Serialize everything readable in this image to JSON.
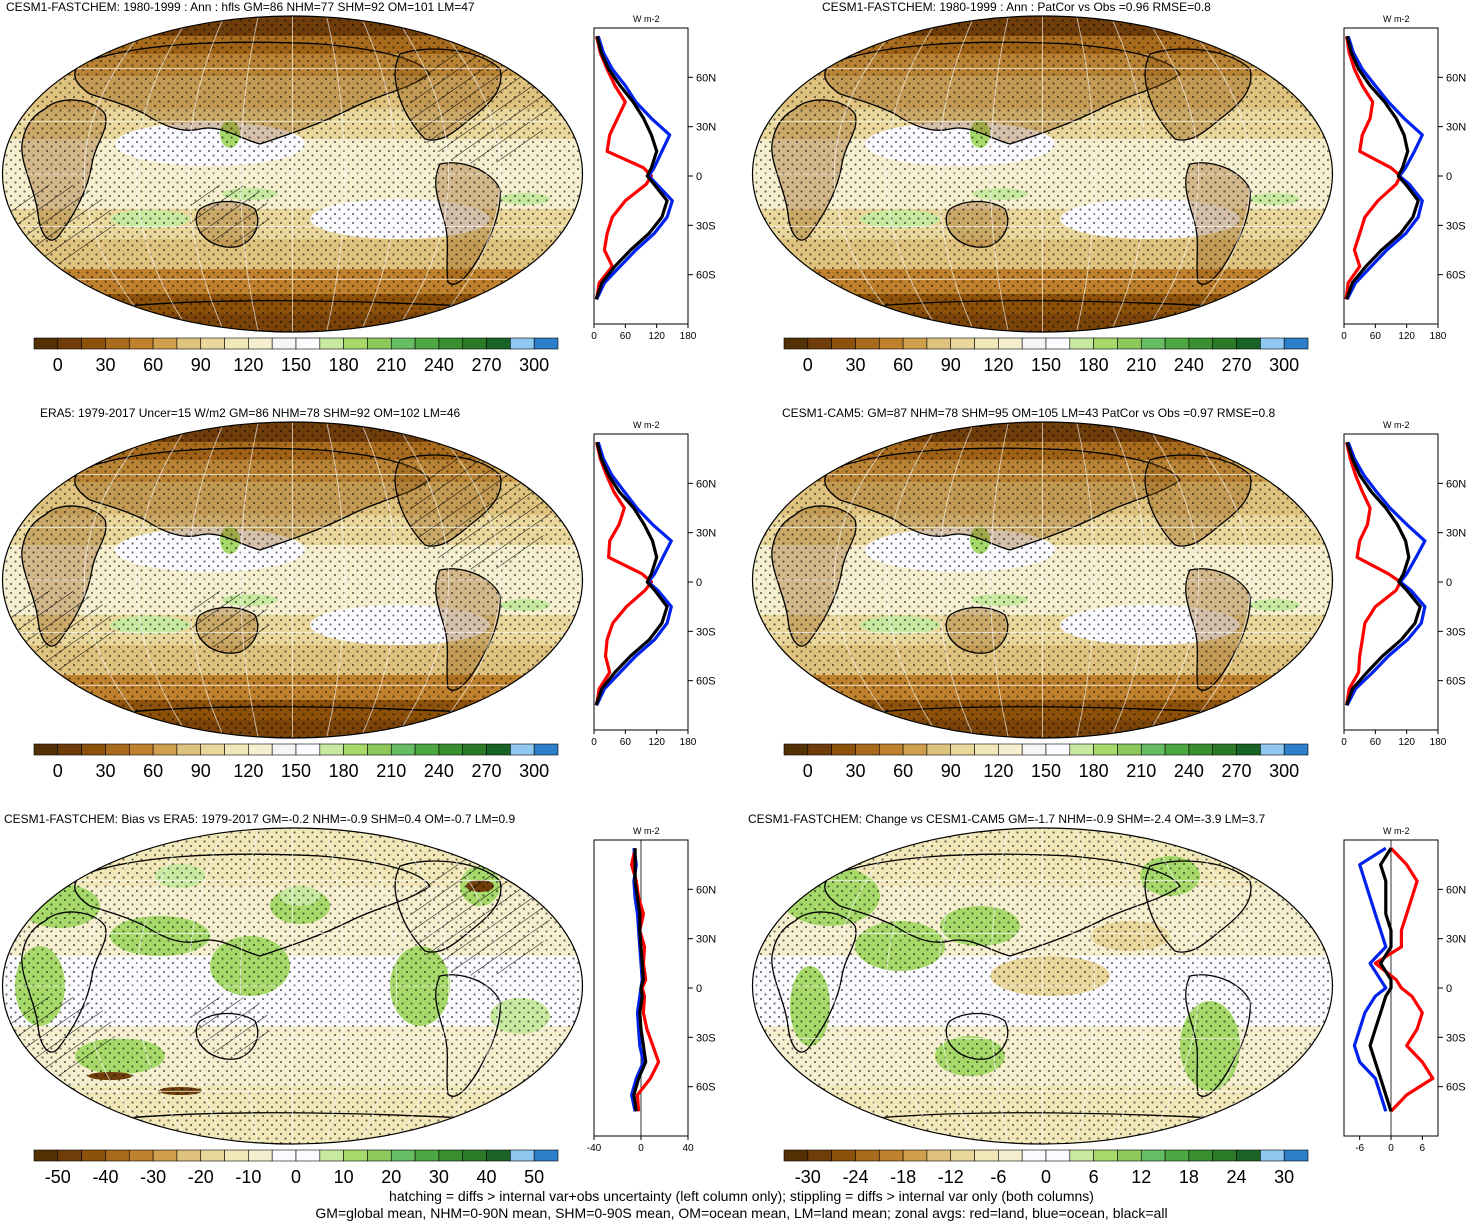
{
  "panels": [
    {
      "title": "CESM1-FASTCHEM: 1980-1999 : Ann : hfls GM=86 NHM=77 SHM=92 OM=101 LM=47",
      "kind": "abs",
      "hatch": true,
      "unit": "W m-2",
      "colorbar_labels": [
        "0",
        "30",
        "60",
        "90",
        "120",
        "150",
        "180",
        "210",
        "240",
        "270",
        "300"
      ],
      "zonal_xticks": [
        "0",
        "60",
        "120",
        "180"
      ],
      "zonal_xlim": [
        0,
        180
      ],
      "lat_labels": [
        "60N",
        "30N",
        "0",
        "30S",
        "60S"
      ],
      "zonal_avgs": {
        "lat": [
          85,
          75,
          65,
          55,
          45,
          35,
          25,
          15,
          5,
          0,
          -5,
          -15,
          -25,
          -35,
          -45,
          -55,
          -65,
          -75
        ],
        "red": [
          5,
          12,
          25,
          40,
          60,
          45,
          30,
          25,
          95,
          110,
          100,
          60,
          35,
          25,
          20,
          35,
          10,
          5
        ],
        "blue": [
          8,
          18,
          35,
          60,
          80,
          110,
          145,
          130,
          115,
          105,
          120,
          150,
          140,
          115,
          80,
          50,
          20,
          5
        ],
        "black": [
          6,
          14,
          28,
          50,
          75,
          95,
          110,
          120,
          110,
          102,
          115,
          140,
          130,
          105,
          70,
          40,
          15,
          4
        ]
      }
    },
    {
      "title": "CESM1-FASTCHEM: 1980-1999 : Ann : PatCor vs Obs =0.96 RMSE=0.8",
      "kind": "abs",
      "hatch": false,
      "unit": "W m-2",
      "colorbar_labels": [
        "0",
        "30",
        "60",
        "90",
        "120",
        "150",
        "180",
        "210",
        "240",
        "270",
        "300"
      ],
      "zonal_xticks": [
        "0",
        "60",
        "120",
        "180"
      ],
      "zonal_xlim": [
        0,
        180
      ],
      "lat_labels": [
        "60N",
        "30N",
        "0",
        "30S",
        "60S"
      ],
      "zonal_avgs": {
        "lat": [
          85,
          75,
          65,
          55,
          45,
          35,
          25,
          15,
          5,
          0,
          -5,
          -15,
          -25,
          -35,
          -45,
          -55,
          -65,
          -75
        ],
        "red": [
          5,
          10,
          20,
          35,
          55,
          50,
          35,
          30,
          90,
          108,
          100,
          65,
          40,
          30,
          20,
          30,
          8,
          4
        ],
        "blue": [
          8,
          18,
          35,
          60,
          85,
          115,
          150,
          135,
          118,
          106,
          125,
          150,
          142,
          118,
          82,
          52,
          22,
          6
        ],
        "black": [
          6,
          14,
          28,
          50,
          78,
          100,
          115,
          122,
          112,
          104,
          118,
          142,
          132,
          108,
          72,
          42,
          16,
          5
        ]
      }
    },
    {
      "title": "ERA5: 1979-2017 Uncer=15 W/m2 GM=86 NHM=78 SHM=92 OM=102 LM=46",
      "kind": "abs",
      "hatch": true,
      "unit": "W m-2",
      "colorbar_labels": [
        "0",
        "30",
        "60",
        "90",
        "120",
        "150",
        "180",
        "210",
        "240",
        "270",
        "300"
      ],
      "zonal_xticks": [
        "0",
        "60",
        "120",
        "180"
      ],
      "zonal_xlim": [
        0,
        180
      ],
      "lat_labels": [
        "60N",
        "30N",
        "0",
        "30S",
        "60S"
      ],
      "zonal_avgs": {
        "lat": [
          85,
          75,
          65,
          55,
          45,
          35,
          25,
          15,
          5,
          0,
          -5,
          -15,
          -25,
          -35,
          -45,
          -55,
          -65,
          -75
        ],
        "red": [
          5,
          12,
          24,
          38,
          58,
          48,
          30,
          28,
          92,
          110,
          98,
          62,
          36,
          25,
          22,
          30,
          10,
          5
        ],
        "blue": [
          8,
          18,
          34,
          58,
          82,
          112,
          148,
          132,
          116,
          104,
          122,
          148,
          140,
          116,
          80,
          50,
          20,
          5
        ],
        "black": [
          6,
          14,
          28,
          48,
          76,
          96,
          112,
          120,
          110,
          102,
          116,
          140,
          130,
          106,
          70,
          40,
          15,
          4
        ]
      }
    },
    {
      "title": "CESM1-CAM5: GM=87 NHM=78 SHM=95 OM=105 LM=43 PatCor vs Obs =0.97 RMSE=0.8",
      "kind": "abs",
      "hatch": false,
      "unit": "W m-2",
      "colorbar_labels": [
        "0",
        "30",
        "60",
        "90",
        "120",
        "150",
        "180",
        "210",
        "240",
        "270",
        "300"
      ],
      "zonal_xticks": [
        "0",
        "60",
        "120",
        "180"
      ],
      "zonal_xlim": [
        0,
        180
      ],
      "lat_labels": [
        "60N",
        "30N",
        "0",
        "30S",
        "60S"
      ],
      "zonal_avgs": {
        "lat": [
          85,
          75,
          65,
          55,
          45,
          35,
          25,
          15,
          5,
          0,
          -5,
          -15,
          -25,
          -35,
          -45,
          -55,
          -65,
          -75
        ],
        "red": [
          5,
          12,
          22,
          35,
          50,
          45,
          30,
          25,
          85,
          108,
          100,
          60,
          40,
          35,
          30,
          28,
          10,
          5
        ],
        "blue": [
          8,
          20,
          38,
          62,
          88,
          120,
          155,
          138,
          120,
          108,
          128,
          155,
          148,
          122,
          85,
          55,
          22,
          6
        ],
        "black": [
          6,
          16,
          30,
          52,
          80,
          102,
          118,
          124,
          114,
          105,
          120,
          146,
          136,
          110,
          74,
          44,
          16,
          5
        ]
      }
    },
    {
      "title": "CESM1-FASTCHEM: Bias vs ERA5: 1979-2017 GM=-0.2 NHM=-0.9 SHM=0.4 OM=-0.7 LM=0.9",
      "kind": "diff",
      "hatch": true,
      "unit": "W m-2",
      "colorbar_labels": [
        "-50",
        "-40",
        "-30",
        "-20",
        "-10",
        "0",
        "10",
        "20",
        "30",
        "40",
        "50"
      ],
      "zonal_xticks": [
        "-40",
        "0",
        "40"
      ],
      "zonal_xlim": [
        -40,
        40
      ],
      "lat_labels": [
        "60N",
        "30N",
        "0",
        "30S",
        "60S"
      ],
      "zonal_avgs": {
        "lat": [
          85,
          75,
          65,
          55,
          45,
          35,
          25,
          15,
          5,
          0,
          -5,
          -15,
          -25,
          -35,
          -45,
          -55,
          -65,
          -75
        ],
        "red": [
          -5,
          -8,
          -4,
          -2,
          2,
          -1,
          3,
          2,
          4,
          1,
          3,
          2,
          5,
          10,
          15,
          8,
          -3,
          -2
        ],
        "blue": [
          -6,
          -4,
          -6,
          -5,
          -3,
          -2,
          -1,
          0,
          1,
          0,
          -1,
          -3,
          -2,
          -1,
          2,
          -4,
          -8,
          -5
        ],
        "black": [
          -5,
          -5,
          -5,
          -3,
          -1,
          -1,
          0,
          1,
          2,
          0,
          1,
          -1,
          0,
          2,
          4,
          -2,
          -6,
          -4
        ]
      }
    },
    {
      "title": "CESM1-FASTCHEM: Change vs CESM1-CAM5 GM=-1.7 NHM=-0.9 SHM=-2.4 OM=-3.9 LM=3.7",
      "kind": "diff2",
      "hatch": false,
      "unit": "W m-2",
      "colorbar_labels": [
        "-30",
        "-24",
        "-18",
        "-12",
        "-6",
        "0",
        "6",
        "12",
        "18",
        "24",
        "30"
      ],
      "zonal_xticks": [
        "-6",
        "0",
        "6"
      ],
      "zonal_xlim": [
        -9,
        9
      ],
      "lat_labels": [
        "60N",
        "30N",
        "0",
        "30S",
        "60S"
      ],
      "zonal_avgs": {
        "lat": [
          85,
          75,
          65,
          55,
          45,
          35,
          25,
          15,
          5,
          0,
          -5,
          -15,
          -25,
          -35,
          -45,
          -55,
          -65,
          -75
        ],
        "red": [
          0,
          3,
          5,
          4,
          3,
          2,
          2,
          -3,
          1,
          2,
          4,
          6,
          5,
          3,
          6,
          8,
          3,
          0
        ],
        "blue": [
          -1,
          -6,
          -5,
          -4,
          -3,
          -2,
          -1,
          -4,
          -2,
          -1,
          -3,
          -5,
          -6,
          -7,
          -6,
          -3,
          -2,
          -1
        ],
        "black": [
          0,
          -2,
          -1,
          -1,
          -1,
          0,
          0,
          -2,
          0,
          0,
          -1,
          -2,
          -3,
          -4,
          -3,
          -2,
          -1,
          0
        ]
      }
    }
  ],
  "palette_abs": [
    "#543005",
    "#6f3d0a",
    "#8c510a",
    "#a86a1c",
    "#bf812d",
    "#cf9f4e",
    "#dfc27d",
    "#ead79c",
    "#f1e7b8",
    "#f6efcf",
    "#f5f5f5",
    "#fbfbff",
    "#c7e9a0",
    "#a6d96a",
    "#8cc85c",
    "#66bd63",
    "#4da843",
    "#3a8f30",
    "#2b7a28",
    "#1a6326",
    "#90c8f0",
    "#2e7fc9"
  ],
  "palette_diff": [
    "#543005",
    "#6f3d0a",
    "#8c510a",
    "#a86a1c",
    "#bf812d",
    "#cf9f4e",
    "#dfc27d",
    "#ead79c",
    "#f1e7b8",
    "#f6efcf",
    "#fbfbff",
    "#fbfbff",
    "#c7e9a0",
    "#a6d96a",
    "#8cc85c",
    "#66bd63",
    "#4da843",
    "#3a8f30",
    "#2b7a28",
    "#1a6326",
    "#90c8f0",
    "#2e7fc9"
  ],
  "footer": {
    "line1": "hatching = diffs > internal var+obs uncertainty (left column only); stippling = diffs > internal var only (both columns)",
    "line2": "GM=global mean, NHM=0-90N mean, SHM=0-90S mean, OM=ocean mean, LM=land mean; zonal avgs: red=land, blue=ocean, black=all"
  }
}
